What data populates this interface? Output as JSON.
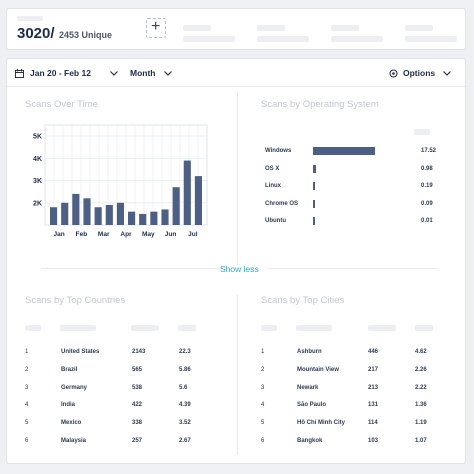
{
  "header": {
    "total": "3020/",
    "unique": "2453 Unique",
    "add_label": "+"
  },
  "toolbar": {
    "date_range": "Jan 20 - Feb 12",
    "period": "Month",
    "options_label": "Options"
  },
  "scans_over_time": {
    "title": "Scans Over Time"
  },
  "scans_by_os": {
    "title": "Scans by Operating System",
    "rows": [
      {
        "label": "Windows",
        "value": "17.52",
        "share": 17.52
      },
      {
        "label": "OS X",
        "value": "0.98",
        "share": 0.98
      },
      {
        "label": "Linux",
        "value": "0.19",
        "share": 0.19
      },
      {
        "label": "Chrome OS",
        "value": "0.09",
        "share": 0.09
      },
      {
        "label": "Ubuntu",
        "value": "0.01",
        "share": 0.01
      }
    ]
  },
  "show_less": "Show less",
  "scans_by_countries": {
    "title": "Scans by Top Countries",
    "rows": [
      {
        "rank": "1",
        "name": "United States",
        "count": "2143",
        "pct": "22.3"
      },
      {
        "rank": "2",
        "name": "Brazil",
        "count": "565",
        "pct": "5.86"
      },
      {
        "rank": "3",
        "name": "Germany",
        "count": "538",
        "pct": "5.6"
      },
      {
        "rank": "4",
        "name": "India",
        "count": "422",
        "pct": "4.39"
      },
      {
        "rank": "5",
        "name": "Mexico",
        "count": "338",
        "pct": "3.52"
      },
      {
        "rank": "6",
        "name": "Malaysia",
        "count": "257",
        "pct": "2.67"
      }
    ]
  },
  "scans_by_cities": {
    "title": "Scans by Top Cities",
    "rows": [
      {
        "rank": "1",
        "name": "Ashburn",
        "count": "446",
        "pct": "4.62"
      },
      {
        "rank": "2",
        "name": "Mountain View",
        "count": "217",
        "pct": "2.26"
      },
      {
        "rank": "3",
        "name": "Newark",
        "count": "213",
        "pct": "2.22"
      },
      {
        "rank": "4",
        "name": "São Paulo",
        "count": "131",
        "pct": "1.36"
      },
      {
        "rank": "5",
        "name": "Hồ Chí Minh City",
        "count": "114",
        "pct": "1.19"
      },
      {
        "rank": "6",
        "name": "Bangkok",
        "count": "103",
        "pct": "1.07"
      }
    ]
  },
  "colors": {
    "bar": "#4d5f85",
    "accent": "#37a6d6",
    "text": "#1d2b4a"
  },
  "chart_data": {
    "type": "bar",
    "title": "Scans Over Time",
    "xlabel": "",
    "ylabel": "",
    "yticks": [
      "2K",
      "3K",
      "4K",
      "5K"
    ],
    "ylim": [
      1000,
      5500
    ],
    "grid": true,
    "xticks": [
      "Jan",
      "Feb",
      "Mar",
      "Apr",
      "May",
      "Jun",
      "Jul"
    ],
    "values": [
      1800,
      2000,
      2400,
      2200,
      1800,
      1900,
      2000,
      1600,
      1500,
      1600,
      1700,
      2700,
      3900,
      3200
    ]
  }
}
